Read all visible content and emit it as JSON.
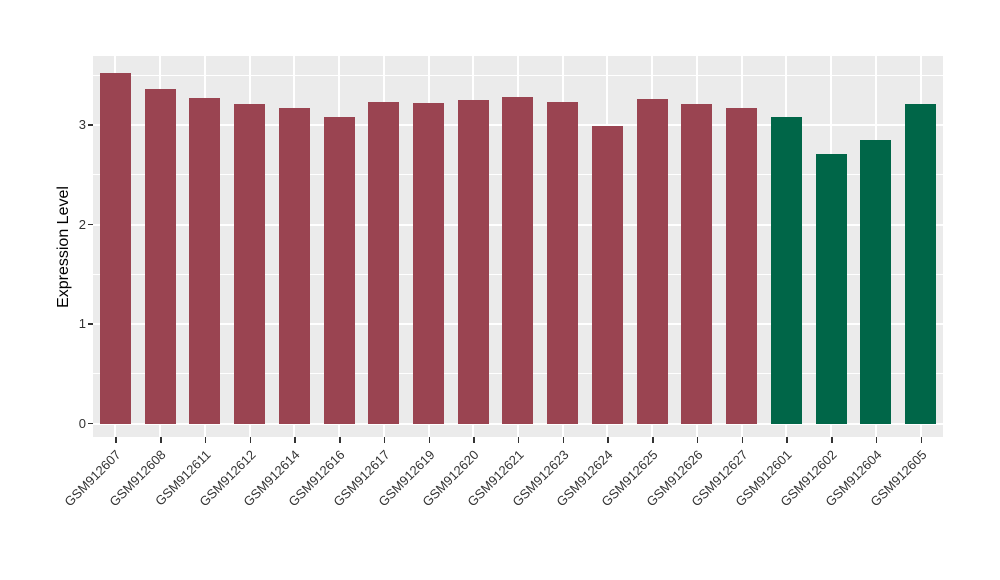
{
  "figure": {
    "background": "#FFFFFF"
  },
  "chart_data": {
    "type": "bar",
    "title": "",
    "xlabel": "",
    "ylabel": "Expression Level",
    "categories": [
      "GSM912607",
      "GSM912608",
      "GSM912611",
      "GSM912612",
      "GSM912614",
      "GSM912616",
      "GSM912617",
      "GSM912619",
      "GSM912620",
      "GSM912621",
      "GSM912623",
      "GSM912624",
      "GSM912625",
      "GSM912626",
      "GSM912627",
      "GSM912601",
      "GSM912602",
      "GSM912604",
      "GSM912605"
    ],
    "values": [
      3.52,
      3.36,
      3.27,
      3.21,
      3.17,
      3.08,
      3.23,
      3.22,
      3.25,
      3.28,
      3.23,
      2.99,
      3.26,
      3.21,
      3.17,
      3.08,
      2.71,
      2.85,
      3.21
    ],
    "bar_groups": [
      "red",
      "red",
      "red",
      "red",
      "red",
      "red",
      "red",
      "red",
      "red",
      "red",
      "red",
      "red",
      "red",
      "red",
      "red",
      "green",
      "green",
      "green",
      "green"
    ],
    "palette": {
      "red": "#9A4451",
      "green": "#006648"
    },
    "y_ticks": [
      "0",
      "1",
      "2",
      "3"
    ],
    "y_tick_values": [
      0,
      1,
      2,
      3
    ],
    "y_minor_gridlines": [
      0.5,
      1.5,
      2.5,
      3.5
    ],
    "ylim": [
      0,
      3.7
    ],
    "grid": true,
    "legend": false,
    "panel_background": "#EBEBEB",
    "gridline_color": "#FFFFFF",
    "axis_text_color": "#333333",
    "axis_title_color": "#000000"
  }
}
